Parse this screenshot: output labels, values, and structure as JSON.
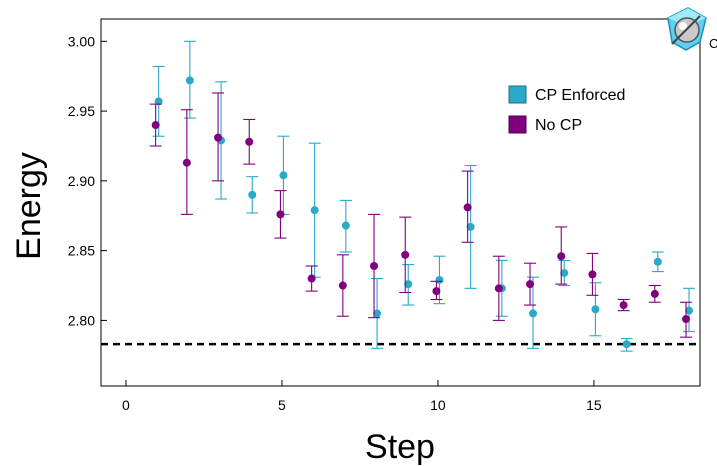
{
  "chart_data": {
    "type": "scatter",
    "xlabel": "Step",
    "ylabel": "Energy",
    "xlim": [
      -0.8,
      18.4
    ],
    "ylim": [
      2.753,
      3.016
    ],
    "xticks": [
      0,
      5,
      10,
      15
    ],
    "xtick_labels": [
      "0",
      "5",
      "10",
      "15"
    ],
    "yticks": [
      2.8,
      2.85,
      2.9,
      2.95,
      3.0
    ],
    "ytick_labels": [
      "2.80",
      "2.85",
      "2.90",
      "2.95",
      "3.00"
    ],
    "reference_line": {
      "y": 2.783,
      "style": "dashed",
      "color": "#000000"
    },
    "legend": {
      "placement": "top-right-inside"
    },
    "series": [
      {
        "name": "CP Enforced",
        "color": "#2aa9c9",
        "points": [
          {
            "x": 1,
            "y": 2.957,
            "low": 2.932,
            "high": 2.982
          },
          {
            "x": 2,
            "y": 2.972,
            "low": 2.945,
            "high": 3.0
          },
          {
            "x": 3,
            "y": 2.929,
            "low": 2.887,
            "high": 2.971
          },
          {
            "x": 4,
            "y": 2.89,
            "low": 2.877,
            "high": 2.903
          },
          {
            "x": 5,
            "y": 2.904,
            "low": 2.876,
            "high": 2.932
          },
          {
            "x": 6,
            "y": 2.879,
            "low": 2.831,
            "high": 2.927
          },
          {
            "x": 7,
            "y": 2.868,
            "low": 2.849,
            "high": 2.886
          },
          {
            "x": 8,
            "y": 2.805,
            "low": 2.78,
            "high": 2.83
          },
          {
            "x": 9,
            "y": 2.826,
            "low": 2.811,
            "high": 2.84
          },
          {
            "x": 10,
            "y": 2.829,
            "low": 2.812,
            "high": 2.846
          },
          {
            "x": 11,
            "y": 2.867,
            "low": 2.823,
            "high": 2.911
          },
          {
            "x": 12,
            "y": 2.823,
            "low": 2.803,
            "high": 2.843
          },
          {
            "x": 13,
            "y": 2.805,
            "low": 2.78,
            "high": 2.831
          },
          {
            "x": 14,
            "y": 2.834,
            "low": 2.825,
            "high": 2.843
          },
          {
            "x": 15,
            "y": 2.808,
            "low": 2.789,
            "high": 2.827
          },
          {
            "x": 16,
            "y": 2.783,
            "low": 2.778,
            "high": 2.787
          },
          {
            "x": 17,
            "y": 2.842,
            "low": 2.835,
            "high": 2.849
          },
          {
            "x": 18,
            "y": 2.807,
            "low": 2.792,
            "high": 2.823
          }
        ]
      },
      {
        "name": "No CP",
        "color": "#800080",
        "points": [
          {
            "x": 1,
            "y": 2.94,
            "low": 2.925,
            "high": 2.955
          },
          {
            "x": 2,
            "y": 2.913,
            "low": 2.876,
            "high": 2.951
          },
          {
            "x": 3,
            "y": 2.931,
            "low": 2.9,
            "high": 2.963
          },
          {
            "x": 4,
            "y": 2.928,
            "low": 2.912,
            "high": 2.944
          },
          {
            "x": 5,
            "y": 2.876,
            "low": 2.859,
            "high": 2.893
          },
          {
            "x": 6,
            "y": 2.83,
            "low": 2.821,
            "high": 2.839
          },
          {
            "x": 7,
            "y": 2.825,
            "low": 2.803,
            "high": 2.847
          },
          {
            "x": 8,
            "y": 2.839,
            "low": 2.802,
            "high": 2.876
          },
          {
            "x": 9,
            "y": 2.847,
            "low": 2.82,
            "high": 2.874
          },
          {
            "x": 10,
            "y": 2.821,
            "low": 2.815,
            "high": 2.828
          },
          {
            "x": 11,
            "y": 2.881,
            "low": 2.856,
            "high": 2.907
          },
          {
            "x": 12,
            "y": 2.823,
            "low": 2.8,
            "high": 2.846
          },
          {
            "x": 13,
            "y": 2.826,
            "low": 2.811,
            "high": 2.841
          },
          {
            "x": 14,
            "y": 2.846,
            "low": 2.826,
            "high": 2.867
          },
          {
            "x": 15,
            "y": 2.833,
            "low": 2.818,
            "high": 2.848
          },
          {
            "x": 16,
            "y": 2.811,
            "low": 2.807,
            "high": 2.815
          },
          {
            "x": 17,
            "y": 2.819,
            "low": 2.813,
            "high": 2.825
          },
          {
            "x": 18,
            "y": 2.801,
            "low": 2.788,
            "high": 2.813
          }
        ]
      }
    ]
  },
  "corner_badge": {
    "icon": "gem-logo-icon",
    "text": "C"
  }
}
